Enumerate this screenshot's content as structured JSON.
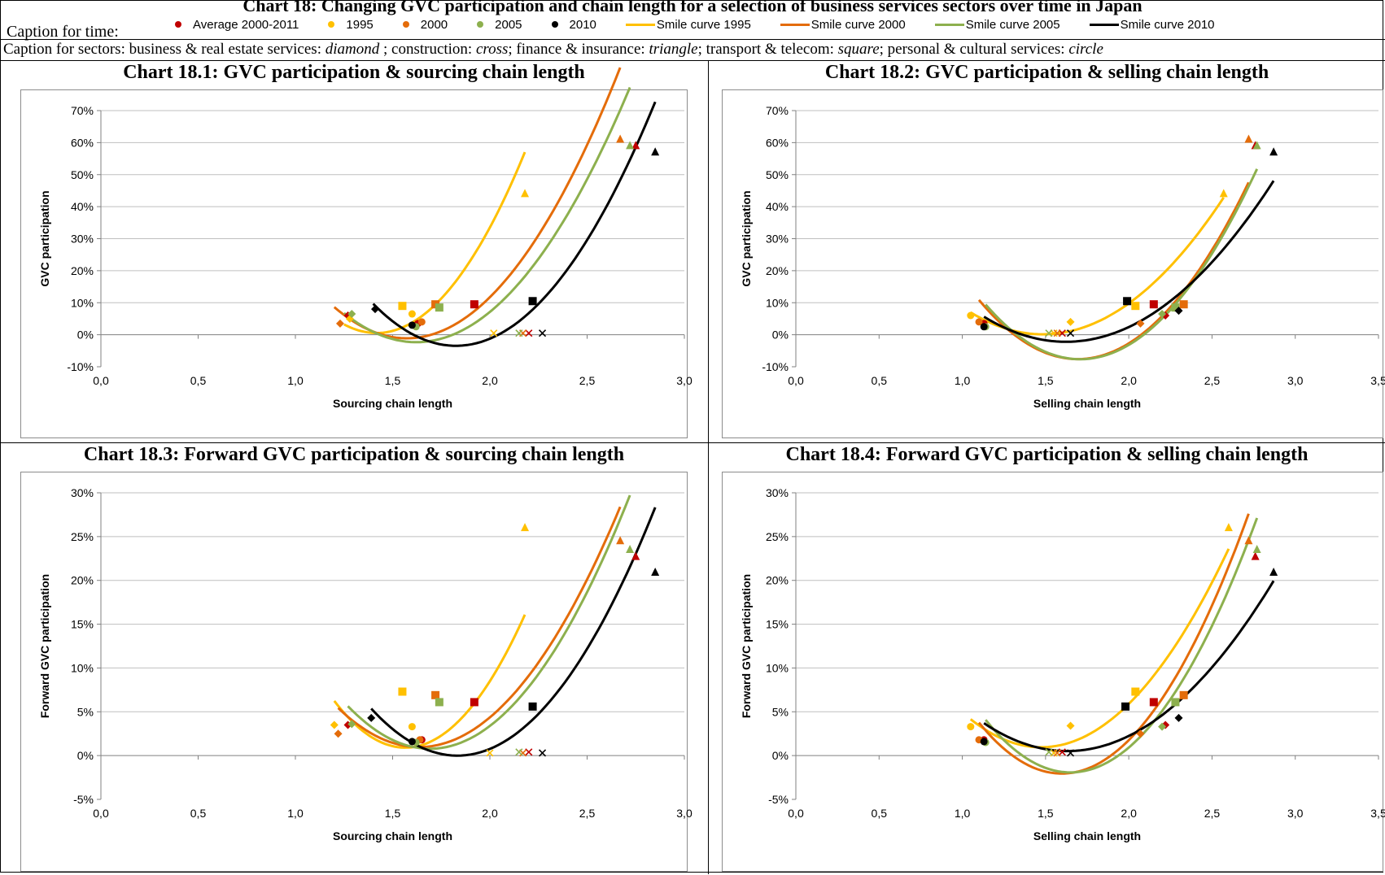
{
  "page_title": "Chart 18: Changing GVC participation and chain length for a selection of business services sectors over time in Japan",
  "caption_time_label": "Caption for time:",
  "caption_sectors_html": "Caption for sectors: business &amp; real estate services: <i>diamond</i> ; construction: <i>cross</i>; finance &amp; insurance: <i>triangle</i>; transport &amp; telecom: <i>square</i>; personal &amp; cultural services: <i>circle</i>",
  "legend": [
    {
      "label": "Average 2000-2011",
      "kind": "marker",
      "color": "#c00000"
    },
    {
      "label": "1995",
      "kind": "marker",
      "color": "#ffc000"
    },
    {
      "label": "2000",
      "kind": "marker",
      "color": "#e46c0a"
    },
    {
      "label": "2005",
      "kind": "marker",
      "color": "#8db04e"
    },
    {
      "label": "2010",
      "kind": "marker",
      "color": "#000000"
    },
    {
      "label": "Smile curve 1995",
      "kind": "line",
      "color": "#ffc000"
    },
    {
      "label": "Smile curve 2000",
      "kind": "line",
      "color": "#e46c0a"
    },
    {
      "label": "Smile curve 2005",
      "kind": "line",
      "color": "#8db04e"
    },
    {
      "label": "Smile curve 2010",
      "kind": "line",
      "color": "#000000"
    }
  ],
  "chart_data": [
    {
      "id": "c1",
      "type": "scatter",
      "title": "Chart 18.1: GVC participation & sourcing chain length",
      "xlabel": "Sourcing chain length",
      "ylabel": "GVC participation",
      "xlim": [
        0,
        3.0
      ],
      "xstep": 0.5,
      "ylim": [
        -10,
        70
      ],
      "ystep": 10,
      "xticks": [
        "0,0",
        "0,5",
        "1,0",
        "1,5",
        "2,0",
        "2,5",
        "3,0"
      ],
      "yticks": [
        "-10%",
        "0%",
        "10%",
        "20%",
        "30%",
        "40%",
        "50%",
        "60%",
        "70%"
      ],
      "series": [
        {
          "name": "Average 2000-2011",
          "color": "#c00000",
          "points": [
            [
              1.27,
              6
            ],
            [
              1.92,
              9.5
            ],
            [
              2.75,
              59
            ],
            [
              2.2,
              0.5
            ],
            [
              1.63,
              3.5
            ]
          ],
          "shapes": [
            "diamond",
            "square",
            "triangle",
            "cross",
            "circle"
          ]
        },
        {
          "name": "1995",
          "color": "#ffc000",
          "points": [
            [
              1.28,
              5
            ],
            [
              1.55,
              9
            ],
            [
              2.18,
              44
            ],
            [
              2.02,
              0.5
            ],
            [
              1.6,
              6.5
            ]
          ],
          "shapes": [
            "diamond",
            "square",
            "triangle",
            "cross",
            "circle"
          ]
        },
        {
          "name": "2000",
          "color": "#e46c0a",
          "points": [
            [
              1.23,
              3.5
            ],
            [
              1.72,
              9.5
            ],
            [
              2.67,
              61
            ],
            [
              2.17,
              0.5
            ],
            [
              1.65,
              4
            ]
          ],
          "shapes": [
            "diamond",
            "square",
            "triangle",
            "cross",
            "circle"
          ]
        },
        {
          "name": "2005",
          "color": "#8db04e",
          "points": [
            [
              1.29,
              6.5
            ],
            [
              1.74,
              8.5
            ],
            [
              2.72,
              59
            ],
            [
              2.15,
              0.5
            ],
            [
              1.62,
              2.5
            ]
          ],
          "shapes": [
            "diamond",
            "square",
            "triangle",
            "cross",
            "circle"
          ]
        },
        {
          "name": "2010",
          "color": "#000000",
          "points": [
            [
              1.41,
              8
            ],
            [
              2.22,
              10.5
            ],
            [
              2.85,
              57
            ],
            [
              2.27,
              0.5
            ],
            [
              1.6,
              3
            ]
          ],
          "shapes": [
            "diamond",
            "square",
            "triangle",
            "cross",
            "circle"
          ]
        }
      ],
      "curves": [
        {
          "name": "Smile curve 1995",
          "color": "#ffc000",
          "x": [
            1.25,
            2.18
          ],
          "coef": [
            96.98,
            -274.8,
            195.2
          ]
        },
        {
          "name": "Smile curve 2000",
          "color": "#e46c0a",
          "x": [
            1.2,
            2.67
          ],
          "coef": [
            70.18,
            -220.7,
            172.4
          ]
        },
        {
          "name": "Smile curve 2005",
          "color": "#8db04e",
          "x": [
            1.25,
            2.72
          ],
          "coef": [
            65.93,
            -213.8,
            171.0
          ]
        },
        {
          "name": "Smile curve 2010",
          "color": "#000000",
          "x": [
            1.4,
            2.85
          ],
          "coef": [
            72.54,
            -264.8,
            238.2
          ]
        }
      ]
    },
    {
      "id": "c2",
      "type": "scatter",
      "title": "Chart 18.2: GVC participation & selling chain length",
      "xlabel": "Selling chain length",
      "ylabel": "GVC participation",
      "xlim": [
        0,
        3.5
      ],
      "xstep": 0.5,
      "ylim": [
        -10,
        70
      ],
      "ystep": 10,
      "xticks": [
        "0,0",
        "0,5",
        "1,0",
        "1,5",
        "2,0",
        "2,5",
        "3,0",
        "3,5"
      ],
      "yticks": [
        "-10%",
        "0%",
        "10%",
        "20%",
        "30%",
        "40%",
        "50%",
        "60%",
        "70%"
      ],
      "series": [
        {
          "name": "Average 2000-2011",
          "color": "#c00000",
          "points": [
            [
              2.22,
              6
            ],
            [
              2.15,
              9.5
            ],
            [
              2.76,
              59
            ],
            [
              1.6,
              0.5
            ],
            [
              1.13,
              3.5
            ]
          ],
          "shapes": [
            "diamond",
            "square",
            "triangle",
            "cross",
            "circle"
          ]
        },
        {
          "name": "1995",
          "color": "#ffc000",
          "points": [
            [
              1.65,
              4
            ],
            [
              2.04,
              9
            ],
            [
              2.57,
              44
            ],
            [
              1.55,
              0.5
            ],
            [
              1.05,
              6
            ]
          ],
          "shapes": [
            "diamond",
            "square",
            "triangle",
            "cross",
            "circle"
          ]
        },
        {
          "name": "2000",
          "color": "#e46c0a",
          "points": [
            [
              2.07,
              3.5
            ],
            [
              2.33,
              9.5
            ],
            [
              2.72,
              61
            ],
            [
              1.57,
              0.5
            ],
            [
              1.1,
              4
            ]
          ],
          "shapes": [
            "diamond",
            "square",
            "triangle",
            "cross",
            "circle"
          ]
        },
        {
          "name": "2005",
          "color": "#8db04e",
          "points": [
            [
              2.2,
              6.5
            ],
            [
              2.28,
              8.5
            ],
            [
              2.77,
              59
            ],
            [
              1.52,
              0.5
            ],
            [
              1.14,
              2.5
            ]
          ],
          "shapes": [
            "diamond",
            "square",
            "triangle",
            "cross",
            "circle"
          ]
        },
        {
          "name": "2010",
          "color": "#000000",
          "points": [
            [
              2.3,
              7.5
            ],
            [
              1.99,
              10.5
            ],
            [
              2.87,
              57
            ],
            [
              1.65,
              0.5
            ],
            [
              1.13,
              2.5
            ]
          ],
          "shapes": [
            "diamond",
            "square",
            "triangle",
            "cross",
            "circle"
          ]
        }
      ],
      "curves": [
        {
          "name": "Smile curve 1995",
          "color": "#ffc000",
          "x": [
            1.05,
            2.57
          ],
          "coef": [
            36.22,
            -107.5,
            79.9
          ]
        },
        {
          "name": "Smile curve 2000",
          "color": "#e46c0a",
          "x": [
            1.1,
            2.72
          ],
          "coef": [
            52.4,
            -177.5,
            142.7
          ]
        },
        {
          "name": "Smile curve 2005",
          "color": "#8db04e",
          "x": [
            1.14,
            2.77
          ],
          "coef": [
            52.78,
            -180.4,
            146.5
          ]
        },
        {
          "name": "Smile curve 2010",
          "color": "#000000",
          "x": [
            1.13,
            2.87
          ],
          "coef": [
            32.3,
            -104.8,
            82.8
          ]
        }
      ]
    },
    {
      "id": "c3",
      "type": "scatter",
      "title": "Chart 18.3: Forward GVC participation & sourcing chain length",
      "xlabel": "Sourcing chain length",
      "ylabel": "Forward GVC participation",
      "xlim": [
        0,
        3.0
      ],
      "xstep": 0.5,
      "ylim": [
        -5,
        30
      ],
      "ystep": 5,
      "xticks": [
        "0,0",
        "0,5",
        "1,0",
        "1,5",
        "2,0",
        "2,5",
        "3,0"
      ],
      "yticks": [
        "-5%",
        "0%",
        "5%",
        "10%",
        "15%",
        "20%",
        "25%",
        "30%"
      ],
      "series": [
        {
          "name": "Average 2000-2011",
          "color": "#c00000",
          "points": [
            [
              1.27,
              3.5
            ],
            [
              1.92,
              6.1
            ],
            [
              2.75,
              22.7
            ],
            [
              2.2,
              0.4
            ],
            [
              1.65,
              1.8
            ]
          ],
          "shapes": [
            "diamond",
            "square",
            "triangle",
            "cross",
            "circle"
          ]
        },
        {
          "name": "1995",
          "color": "#ffc000",
          "points": [
            [
              1.2,
              3.5
            ],
            [
              1.55,
              7.3
            ],
            [
              2.18,
              26
            ],
            [
              2.0,
              0.3
            ],
            [
              1.6,
              3.3
            ]
          ],
          "shapes": [
            "diamond",
            "square",
            "triangle",
            "cross",
            "circle"
          ]
        },
        {
          "name": "2000",
          "color": "#e46c0a",
          "points": [
            [
              1.22,
              2.5
            ],
            [
              1.72,
              6.9
            ],
            [
              2.67,
              24.5
            ],
            [
              2.17,
              0.3
            ],
            [
              1.64,
              1.8
            ]
          ],
          "shapes": [
            "diamond",
            "square",
            "triangle",
            "cross",
            "circle"
          ]
        },
        {
          "name": "2005",
          "color": "#8db04e",
          "points": [
            [
              1.29,
              3.6
            ],
            [
              1.74,
              6.1
            ],
            [
              2.72,
              23.5
            ],
            [
              2.15,
              0.4
            ],
            [
              1.62,
              1.5
            ]
          ],
          "shapes": [
            "diamond",
            "square",
            "triangle",
            "cross",
            "circle"
          ]
        },
        {
          "name": "2010",
          "color": "#000000",
          "points": [
            [
              1.39,
              4.3
            ],
            [
              2.22,
              5.6
            ],
            [
              2.85,
              20.9
            ],
            [
              2.27,
              0.3
            ],
            [
              1.6,
              1.6
            ]
          ],
          "shapes": [
            "diamond",
            "square",
            "triangle",
            "cross",
            "circle"
          ]
        }
      ],
      "curves": [
        {
          "name": "Smile curve 1995",
          "color": "#ffc000",
          "x": [
            1.2,
            2.18
          ],
          "coef": [
            40.1,
            -125.5,
            99.1
          ]
        },
        {
          "name": "Smile curve 2000",
          "color": "#e46c0a",
          "x": [
            1.22,
            2.67
          ],
          "coef": [
            25.69,
            -84.1,
            69.8
          ]
        },
        {
          "name": "Smile curve 2005",
          "color": "#8db04e",
          "x": [
            1.27,
            2.72
          ],
          "coef": [
            27.37,
            -92.6,
            79.1
          ]
        },
        {
          "name": "Smile curve 2010",
          "color": "#000000",
          "x": [
            1.39,
            2.85
          ],
          "coef": [
            27.39,
            -100.4,
            92.0
          ]
        }
      ]
    },
    {
      "id": "c4",
      "type": "scatter",
      "title": "Chart 18.4: Forward GVC participation & selling chain length",
      "xlabel": "Selling chain length",
      "ylabel": "Forward GVC participation",
      "xlim": [
        0,
        3.5
      ],
      "xstep": 0.5,
      "ylim": [
        -5,
        30
      ],
      "ystep": 5,
      "xticks": [
        "0,0",
        "0,5",
        "1,0",
        "1,5",
        "2,0",
        "2,5",
        "3,0",
        "3,5"
      ],
      "yticks": [
        "-5%",
        "0%",
        "5%",
        "10%",
        "15%",
        "20%",
        "25%",
        "30%"
      ],
      "series": [
        {
          "name": "Average 2000-2011",
          "color": "#c00000",
          "points": [
            [
              2.22,
              3.5
            ],
            [
              2.15,
              6.1
            ],
            [
              2.76,
              22.7
            ],
            [
              1.6,
              0.4
            ],
            [
              1.13,
              1.8
            ]
          ],
          "shapes": [
            "diamond",
            "square",
            "triangle",
            "cross",
            "circle"
          ]
        },
        {
          "name": "1995",
          "color": "#ffc000",
          "points": [
            [
              1.65,
              3.4
            ],
            [
              2.04,
              7.3
            ],
            [
              2.6,
              26
            ],
            [
              1.55,
              0.3
            ],
            [
              1.05,
              3.3
            ]
          ],
          "shapes": [
            "diamond",
            "square",
            "triangle",
            "cross",
            "circle"
          ]
        },
        {
          "name": "2000",
          "color": "#e46c0a",
          "points": [
            [
              2.07,
              2.5
            ],
            [
              2.33,
              6.9
            ],
            [
              2.72,
              24.5
            ],
            [
              1.57,
              0.3
            ],
            [
              1.1,
              1.8
            ]
          ],
          "shapes": [
            "diamond",
            "square",
            "triangle",
            "cross",
            "circle"
          ]
        },
        {
          "name": "2005",
          "color": "#8db04e",
          "points": [
            [
              2.2,
              3.3
            ],
            [
              2.28,
              6.1
            ],
            [
              2.77,
              23.5
            ],
            [
              1.52,
              0.4
            ],
            [
              1.14,
              1.5
            ]
          ],
          "shapes": [
            "diamond",
            "square",
            "triangle",
            "cross",
            "circle"
          ]
        },
        {
          "name": "2010",
          "color": "#000000",
          "points": [
            [
              2.3,
              4.3
            ],
            [
              1.98,
              5.6
            ],
            [
              2.87,
              20.9
            ],
            [
              1.65,
              0.3
            ],
            [
              1.13,
              1.6
            ]
          ],
          "shapes": [
            "diamond",
            "square",
            "triangle",
            "cross",
            "circle"
          ]
        }
      ],
      "curves": [
        {
          "name": "Smile curve 1995",
          "color": "#ffc000",
          "x": [
            1.05,
            2.6
          ],
          "coef": [
            17.85,
            -52.6,
            39.7
          ]
        },
        {
          "name": "Smile curve 2000",
          "color": "#e46c0a",
          "x": [
            1.1,
            2.72
          ],
          "coef": [
            23.54,
            -75.2,
            58.0
          ]
        },
        {
          "name": "Smile curve 2005",
          "color": "#8db04e",
          "x": [
            1.14,
            2.77
          ],
          "coef": [
            23.13,
            -76.3,
            61.0
          ]
        },
        {
          "name": "Smile curve 2010",
          "color": "#000000",
          "x": [
            1.13,
            2.87
          ],
          "coef": [
            12.66,
            -41.3,
            34.2
          ]
        }
      ]
    }
  ]
}
